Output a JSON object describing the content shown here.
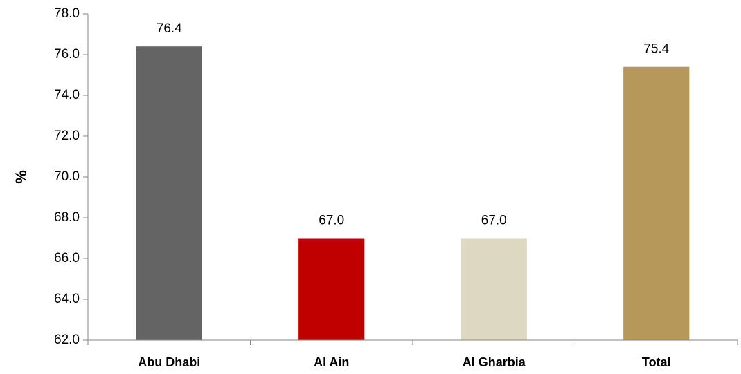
{
  "chart_data": {
    "type": "bar",
    "y_label": "%",
    "categories": [
      "Abu Dhabi",
      "Al Ain",
      "Al Gharbia",
      "Total"
    ],
    "values": [
      76.4,
      67.0,
      67.0,
      75.4
    ],
    "value_labels": [
      "76.4",
      "67.0",
      "67.0",
      "75.4"
    ],
    "colors": [
      "#646464",
      "#c00000",
      "#ddd8c2",
      "#b5985a"
    ],
    "ylim": [
      62,
      78
    ],
    "yticks": [
      {
        "value": 62,
        "label": "62.0"
      },
      {
        "value": 64,
        "label": "64.0"
      },
      {
        "value": 66,
        "label": "66.0"
      },
      {
        "value": 68,
        "label": "68.0"
      },
      {
        "value": 70,
        "label": "70.0"
      },
      {
        "value": 72,
        "label": "72.0"
      },
      {
        "value": 74,
        "label": "74.0"
      },
      {
        "value": 76,
        "label": "76.0"
      },
      {
        "value": 78,
        "label": "78.0"
      }
    ],
    "grid": false
  }
}
